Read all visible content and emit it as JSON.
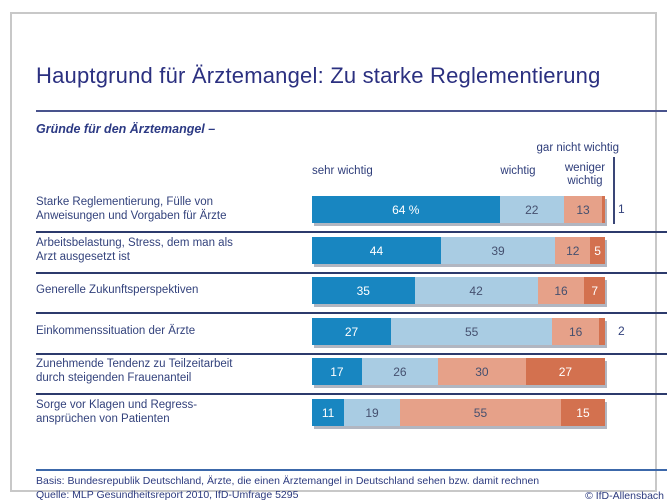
{
  "title": "Hauptgrund für Ärztemangel: Zu starke Reglementierung",
  "subtitle": "Gründe für den Ärztemangel –",
  "headers": {
    "sehr_wichtig": "sehr wichtig",
    "wichtig": "wichtig",
    "weniger_wichtig": "weniger wichtig",
    "gar_nicht_wichtig": "gar nicht wichtig"
  },
  "chart_data": {
    "type": "bar",
    "stacked": true,
    "orientation": "horizontal",
    "unit": "%",
    "xlim": [
      0,
      100
    ],
    "grid": false,
    "legend_position": "top",
    "series_names": [
      "sehr wichtig",
      "wichtig",
      "weniger wichtig",
      "gar nicht wichtig"
    ],
    "series_colors": [
      "#1886c1",
      "#a9cce3",
      "#e6a189",
      "#d3714f"
    ],
    "series": [
      {
        "name": "sehr wichtig",
        "values": [
          64,
          44,
          35,
          27,
          17,
          11
        ]
      },
      {
        "name": "wichtig",
        "values": [
          22,
          39,
          42,
          55,
          26,
          19
        ]
      },
      {
        "name": "weniger wichtig",
        "values": [
          13,
          12,
          16,
          16,
          30,
          55
        ]
      },
      {
        "name": "gar nicht wichtig",
        "values": [
          1,
          5,
          7,
          2,
          27,
          15
        ]
      }
    ],
    "rows": [
      {
        "label_lines": [
          "Starke Reglementierung, Fülle von",
          "Anweisungen und Vorgaben für Ärzte"
        ],
        "values": [
          64,
          22,
          13,
          1
        ],
        "value_labels": [
          "64 %",
          "22",
          "13",
          "1"
        ]
      },
      {
        "label_lines": [
          "Arbeitsbelastung, Stress, dem man als",
          "Arzt ausgesetzt ist"
        ],
        "values": [
          44,
          39,
          12,
          5
        ],
        "value_labels": [
          "44",
          "39",
          "12",
          "5"
        ]
      },
      {
        "label_lines": [
          "Generelle Zukunftsperspektiven"
        ],
        "values": [
          35,
          42,
          16,
          7
        ],
        "value_labels": [
          "35",
          "42",
          "16",
          "7"
        ]
      },
      {
        "label_lines": [
          "Einkommenssituation der Ärzte"
        ],
        "values": [
          27,
          55,
          16,
          2
        ],
        "value_labels": [
          "27",
          "55",
          "16",
          "2"
        ]
      },
      {
        "label_lines": [
          "Zunehmende Tendenz zu Teilzeitarbeit",
          "durch steigenden Frauenanteil"
        ],
        "values": [
          17,
          26,
          30,
          27
        ],
        "value_labels": [
          "17",
          "26",
          "30",
          "27"
        ]
      },
      {
        "label_lines": [
          "Sorge vor Klagen und Regress-",
          "ansprüchen von Patienten"
        ],
        "values": [
          11,
          19,
          55,
          15
        ],
        "value_labels": [
          "11",
          "19",
          "55",
          "15"
        ]
      }
    ]
  },
  "footer": {
    "basis": "Basis: Bundesrepublik Deutschland, Ärzte, die einen Ärztemangel in Deutschland sehen bzw. damit rechnen",
    "quelle": "Quelle: MLP Gesundheitsreport 2010, IfD-Umfrage 5295",
    "copyright": "© IfD-Allensbach"
  },
  "colors": {
    "sehr_wichtig": "#1886c1",
    "wichtig": "#a9cce3",
    "weniger_wichtig": "#e6a189",
    "gar_nicht_wichtig": "#d3714f",
    "navy_text": "#2e3d7a",
    "frame_border": "#c8c8c8",
    "footer_rule": "#3c68aa"
  }
}
